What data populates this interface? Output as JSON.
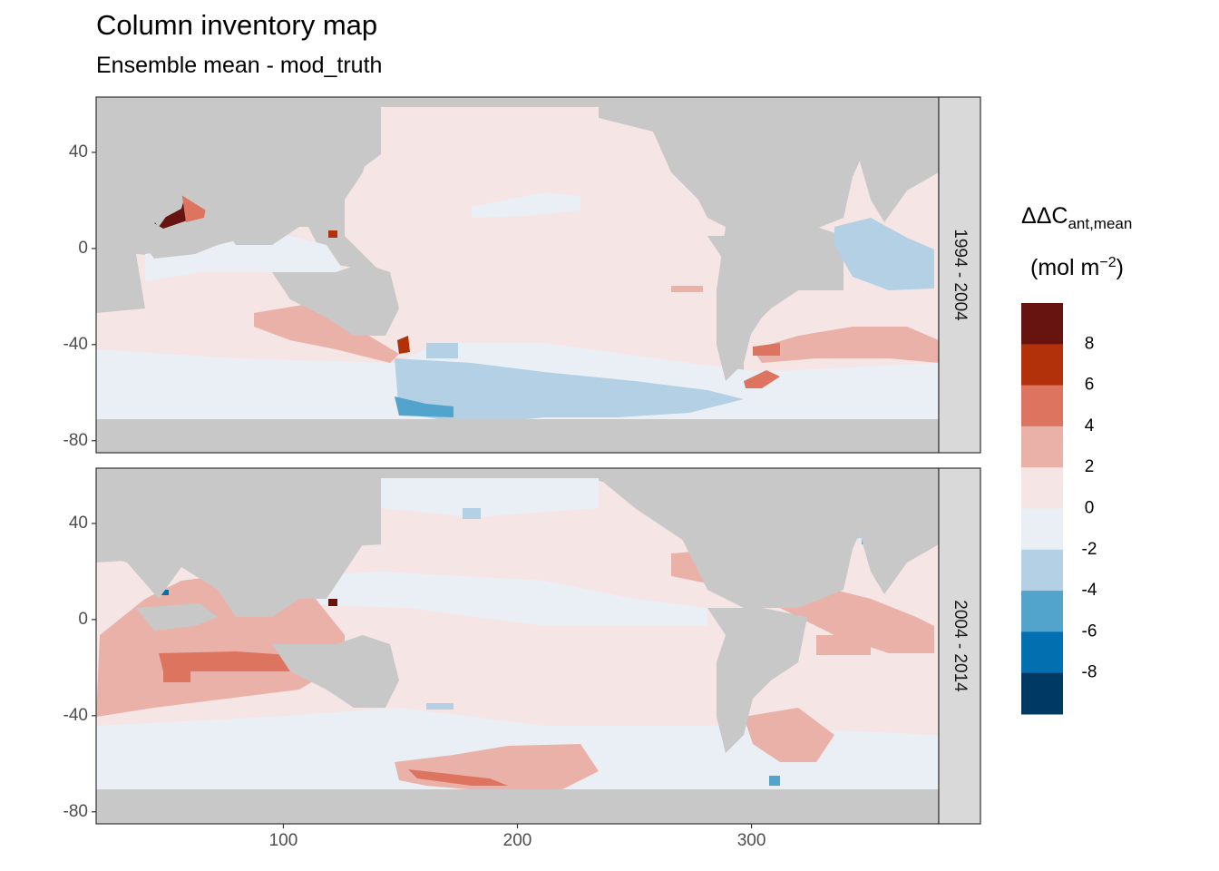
{
  "title": "Column inventory map",
  "subtitle": "Ensemble mean - mod_truth",
  "legend": {
    "title_main": "ΔΔC",
    "title_sub": "ant,mean",
    "unit_main": "(mol m",
    "unit_sup": "−2",
    "unit_close": ")",
    "bins": [
      {
        "label": "8",
        "color": "#67130f"
      },
      {
        "label": "6",
        "color": "#b2310b"
      },
      {
        "label": "4",
        "color": "#dc7460"
      },
      {
        "label": "2",
        "color": "#eab1a8"
      },
      {
        "label": "0",
        "color": "#f5e5e4"
      },
      {
        "label": "-2",
        "color": "#eaeff5"
      },
      {
        "label": "-4",
        "color": "#b3d0e4"
      },
      {
        "label": "-6",
        "color": "#52a4cd"
      },
      {
        "label": "-8",
        "color": "#0270b0"
      },
      {
        "label": "",
        "color": "#003a64"
      }
    ]
  },
  "chart_data": {
    "type": "heatmap",
    "title": "Column inventory map",
    "subtitle": "Ensemble mean - mod_truth",
    "xlabel": "",
    "ylabel": "",
    "xlim": [
      20,
      380
    ],
    "ylim": [
      -85,
      63
    ],
    "x_ticks": [
      100,
      200,
      300
    ],
    "y_ticks": [
      40,
      0,
      -40,
      -80
    ],
    "land_color": "#c8c8c8",
    "panels": [
      {
        "strip": "1994 - 2004",
        "regions": [
          {
            "lon": [
              20,
              380
            ],
            "lat": [
              -65,
              63
            ],
            "value": 1
          },
          {
            "lon": [
              20,
              150
            ],
            "lat": [
              -55,
              -10
            ],
            "value": 2.5
          },
          {
            "lon": [
              20,
              160
            ],
            "lat": [
              -10,
              20
            ],
            "value": -1
          },
          {
            "lon": [
              130,
              150
            ],
            "lat": [
              -10,
              -5
            ],
            "value": -3
          },
          {
            "lon": [
              150,
              330
            ],
            "lat": [
              -70,
              -45
            ],
            "value": -1
          },
          {
            "lon": [
              150,
              240
            ],
            "lat": [
              -68,
              -50
            ],
            "value": -3
          },
          {
            "lon": [
              150,
              200
            ],
            "lat": [
              -68,
              -62
            ],
            "value": -5
          },
          {
            "lon": [
              150,
              250
            ],
            "lat": [
              5,
              15
            ],
            "value": -1
          },
          {
            "lon": [
              320,
              380
            ],
            "lat": [
              -45,
              -25
            ],
            "value": 3
          },
          {
            "lon": [
              320,
              345
            ],
            "lat": [
              -55,
              -40
            ],
            "value": 4
          },
          {
            "lon": [
              310,
              350
            ],
            "lat": [
              -5,
              15
            ],
            "value": -3
          },
          {
            "lon": [
              300,
              340
            ],
            "lat": [
              35,
              50
            ],
            "value": 3
          },
          {
            "lon": [
              60,
              70
            ],
            "lat": [
              10,
              20
            ],
            "value": 9
          },
          {
            "lon": [
              70,
              80
            ],
            "lat": [
              15,
              25
            ],
            "value": 4
          },
          {
            "lon": [
              150,
              155
            ],
            "lat": [
              -42,
              -38
            ],
            "value": 8
          }
        ]
      },
      {
        "strip": "2004 - 2014",
        "regions": [
          {
            "lon": [
              20,
              380
            ],
            "lat": [
              -65,
              63
            ],
            "value": 1
          },
          {
            "lon": [
              20,
              140
            ],
            "lat": [
              -40,
              10
            ],
            "value": 3
          },
          {
            "lon": [
              50,
              120
            ],
            "lat": [
              -25,
              -15
            ],
            "value": 4
          },
          {
            "lon": [
              20,
              380
            ],
            "lat": [
              10,
              20
            ],
            "value": -1
          },
          {
            "lon": [
              160,
              330
            ],
            "lat": [
              -50,
              -40
            ],
            "value": -1
          },
          {
            "lon": [
              150,
              260
            ],
            "lat": [
              -70,
              -60
            ],
            "value": 3
          },
          {
            "lon": [
              150,
              210
            ],
            "lat": [
              -67,
              -64
            ],
            "value": 4
          },
          {
            "lon": [
              300,
              380
            ],
            "lat": [
              -10,
              15
            ],
            "value": 3
          },
          {
            "lon": [
              310,
              360
            ],
            "lat": [
              -55,
              -35
            ],
            "value": 2.5
          },
          {
            "lon": [
              310,
              360
            ],
            "lat": [
              40,
              60
            ],
            "value": -3
          },
          {
            "lon": [
              60,
              65
            ],
            "lat": [
              10,
              15
            ],
            "value": -7
          },
          {
            "lon": [
              350,
              355
            ],
            "lat": [
              35,
              40
            ],
            "value": -6
          },
          {
            "lon": [
              355,
              375
            ],
            "lat": [
              60,
              63
            ],
            "value": -9
          }
        ]
      }
    ]
  }
}
